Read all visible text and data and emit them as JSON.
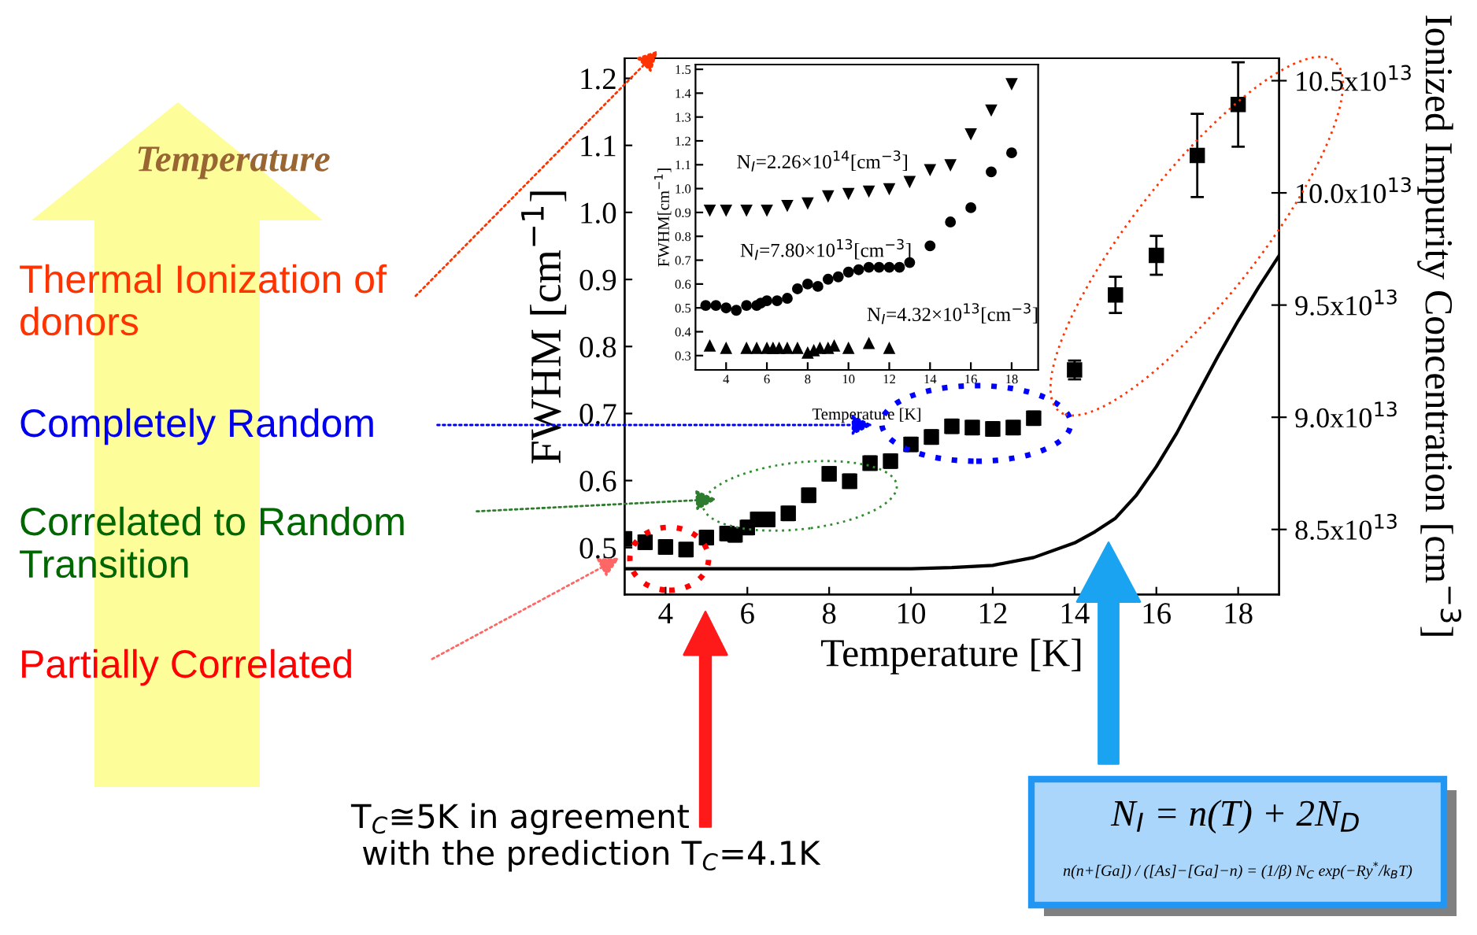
{
  "chart_data": [
    {
      "type": "scatter",
      "xlabel": "Temperature [K]",
      "ylabel": "FWHM [cm$^{−1}$]",
      "y2label": "Ionized Impurity Concentration [cm$^{−3}$]",
      "xlim": [
        3,
        19
      ],
      "ylim": [
        0.43,
        1.23
      ],
      "xticks": [
        4,
        6,
        8,
        10,
        12,
        14,
        16,
        18
      ],
      "yticks": [
        0.5,
        0.6,
        0.7,
        0.8,
        0.9,
        {
          "value": 1.0,
          "label": "1.0"
        },
        1.1,
        1.2
      ],
      "y2lim": [
        82100000000000.0,
        106000000000000.0
      ],
      "y2ticks": [
        {
          "value": 85000000000000.0,
          "label": "8.5x10$^{13}$"
        },
        {
          "value": 90000000000000.0,
          "label": "9.0x10$^{13}$"
        },
        {
          "value": 95000000000000.0,
          "label": "9.5x10$^{13}$"
        },
        {
          "value": 100000000000000.0,
          "label": "10.0x10$^{13}$"
        },
        {
          "value": 105000000000000.0,
          "label": "10.5x10$^{13}$"
        }
      ],
      "series": [
        {
          "type": "scatter",
          "color": "#000000",
          "marker": "square",
          "x": [
            3.0,
            3.5,
            4,
            4.5,
            5,
            5.5,
            5.7,
            6,
            6.25,
            6.5,
            7,
            7.5,
            8,
            8.5,
            9,
            9.5,
            10,
            10.5,
            11,
            11.5,
            12,
            12.5,
            13,
            14,
            15,
            16,
            17,
            18
          ],
          "values": [
            0.513,
            0.508,
            0.501,
            0.497,
            0.515,
            0.521,
            0.519,
            0.53,
            0.542,
            0.542,
            0.551,
            0.578,
            0.61,
            0.599,
            0.626,
            0.629,
            0.654,
            0.665,
            0.681,
            0.679,
            0.677,
            0.679,
            0.693,
            0.765,
            0.877,
            0.936,
            1.085,
            1.161
          ],
          "errors": [
            0.01,
            0.01,
            0.01,
            0.01,
            0.01,
            0.01,
            0.01,
            0.01,
            0.01,
            0.01,
            0.01,
            0.01,
            0.01,
            0.01,
            0.01,
            0.01,
            0.01,
            0.01,
            0.01,
            0.01,
            0.01,
            0.01,
            0.01,
            0.014,
            0.027,
            0.029,
            0.062,
            0.063
          ]
        },
        {
          "type": "line",
          "axis": "y2",
          "color": "#000000",
          "x": [
            3,
            10,
            11,
            12,
            13,
            14,
            14.5,
            15,
            15.5,
            16,
            16.5,
            17,
            17.5,
            18,
            18.5,
            19
          ],
          "values": [
            83250000000000.0,
            83250000000000.0,
            83300000000000.0,
            83400000000000.0,
            83750000000000.0,
            84400000000000.0,
            84900000000000.0,
            85500000000000.0,
            86500000000000.0,
            87800000000000.0,
            89300000000000.0,
            91000000000000.0,
            92700000000000.0,
            94300000000000.0,
            95800000000000.0,
            97200000000000.0
          ]
        }
      ],
      "annotations": [
        "Temperature",
        "Thermal Ionization of\ndonors",
        "Completely Random",
        "Correlated to Random\nTransition",
        "Partially Correlated",
        "T$_{C}$≅5K in agreement\n with the prediction T$_{C}$=4.1K",
        "N$_{I}$ = n(T) + 2N$_{D}$",
        "n(n+[Ga]) / ([As]−[Ga]−n) = (1/β) N$_{C}$ exp(−Ry$^{*}$/k$_{B}$T)"
      ]
    },
    {
      "type": "scatter",
      "xlabel": "Temperature [K]",
      "ylabel": "FWHM[cm$^{−1}$]",
      "xlim": [
        2.5,
        19.3
      ],
      "ylim": [
        0.24,
        1.52
      ],
      "xticks": [
        4,
        6,
        8,
        10,
        12,
        14,
        16,
        18
      ],
      "yticks": [
        0.3,
        0.4,
        0.5,
        0.6,
        0.7,
        0.8,
        0.9,
        {
          "value": 1.0,
          "label": "1.0"
        },
        1.1,
        1.2,
        1.3,
        1.4,
        1.5
      ],
      "series": [
        {
          "name": "N$_{I}$=2.26×10$^{14}$[cm$^{−3}$]",
          "color": "#000000",
          "marker": "triangle_down",
          "x": [
            3.2,
            4,
            5,
            6,
            7,
            8,
            9,
            10,
            11,
            12,
            13,
            14,
            15,
            16,
            17,
            18
          ],
          "values": [
            0.91,
            0.91,
            0.91,
            0.91,
            0.93,
            0.94,
            0.97,
            0.98,
            0.99,
            1.0,
            1.03,
            1.08,
            1.1,
            1.23,
            1.33,
            1.44
          ]
        },
        {
          "name": "N$_{I}$=7.80×10$^{13}$[cm$^{−3}$]",
          "color": "#000000",
          "marker": "circle",
          "x": [
            3.0,
            3.5,
            4,
            4.5,
            5,
            5.5,
            5.7,
            6,
            6.5,
            7,
            7.5,
            8,
            8.5,
            9,
            9.5,
            10,
            10.5,
            11,
            11.5,
            12,
            12.5,
            13,
            14,
            15,
            16,
            17,
            18
          ],
          "values": [
            0.51,
            0.51,
            0.5,
            0.49,
            0.51,
            0.51,
            0.52,
            0.53,
            0.53,
            0.54,
            0.58,
            0.6,
            0.59,
            0.62,
            0.63,
            0.65,
            0.66,
            0.67,
            0.67,
            0.67,
            0.67,
            0.69,
            0.76,
            0.86,
            0.92,
            1.07,
            1.15
          ]
        },
        {
          "name": "N$_{I}$=4.32×10$^{13}$[cm$^{−3}$]",
          "color": "#000000",
          "marker": "triangle",
          "x": [
            3.2,
            4,
            5,
            5.5,
            6,
            6.3,
            6.6,
            7,
            7.5,
            8,
            8.3,
            8.6,
            9,
            9.3,
            10,
            11,
            12
          ],
          "values": [
            0.34,
            0.33,
            0.33,
            0.33,
            0.33,
            0.33,
            0.33,
            0.33,
            0.33,
            0.31,
            0.32,
            0.33,
            0.33,
            0.34,
            0.33,
            0.35,
            0.33
          ]
        }
      ]
    }
  ]
}
